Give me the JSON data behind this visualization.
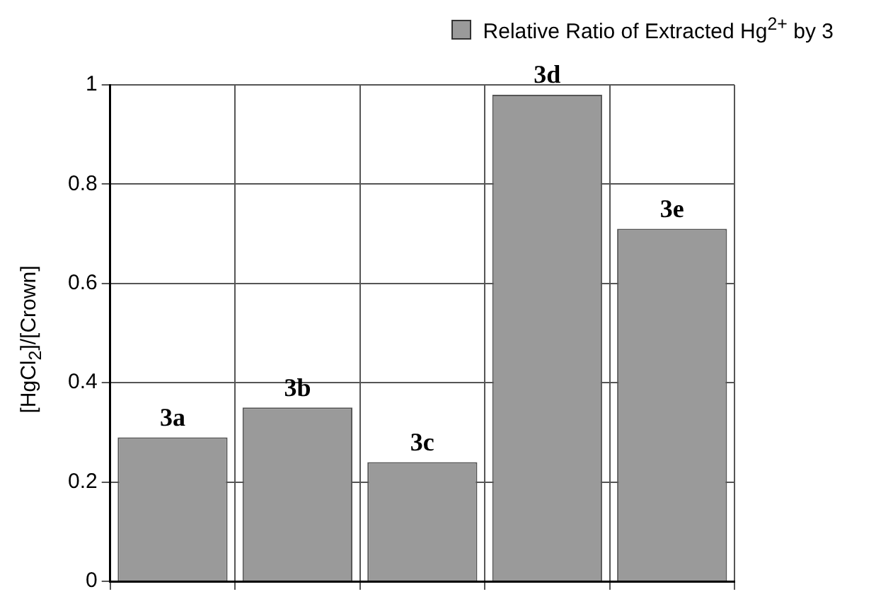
{
  "chart_data": {
    "type": "bar",
    "ylabel": "[HgCl$_{2}$]/[Crown]",
    "categories": [
      "3a",
      "3b",
      "3c",
      "3d",
      "3e"
    ],
    "series": [
      {
        "name": "Relative Ratio of Extracted Hg$^{2+}$ by 3",
        "color": "#9a9a9a",
        "values": [
          0.29,
          0.35,
          0.24,
          0.98,
          0.71
        ]
      }
    ],
    "ylim": [
      0,
      1
    ],
    "yticks": [
      0,
      0.2,
      0.4,
      0.6,
      0.8,
      1
    ],
    "grid": true,
    "legend": "top right"
  }
}
